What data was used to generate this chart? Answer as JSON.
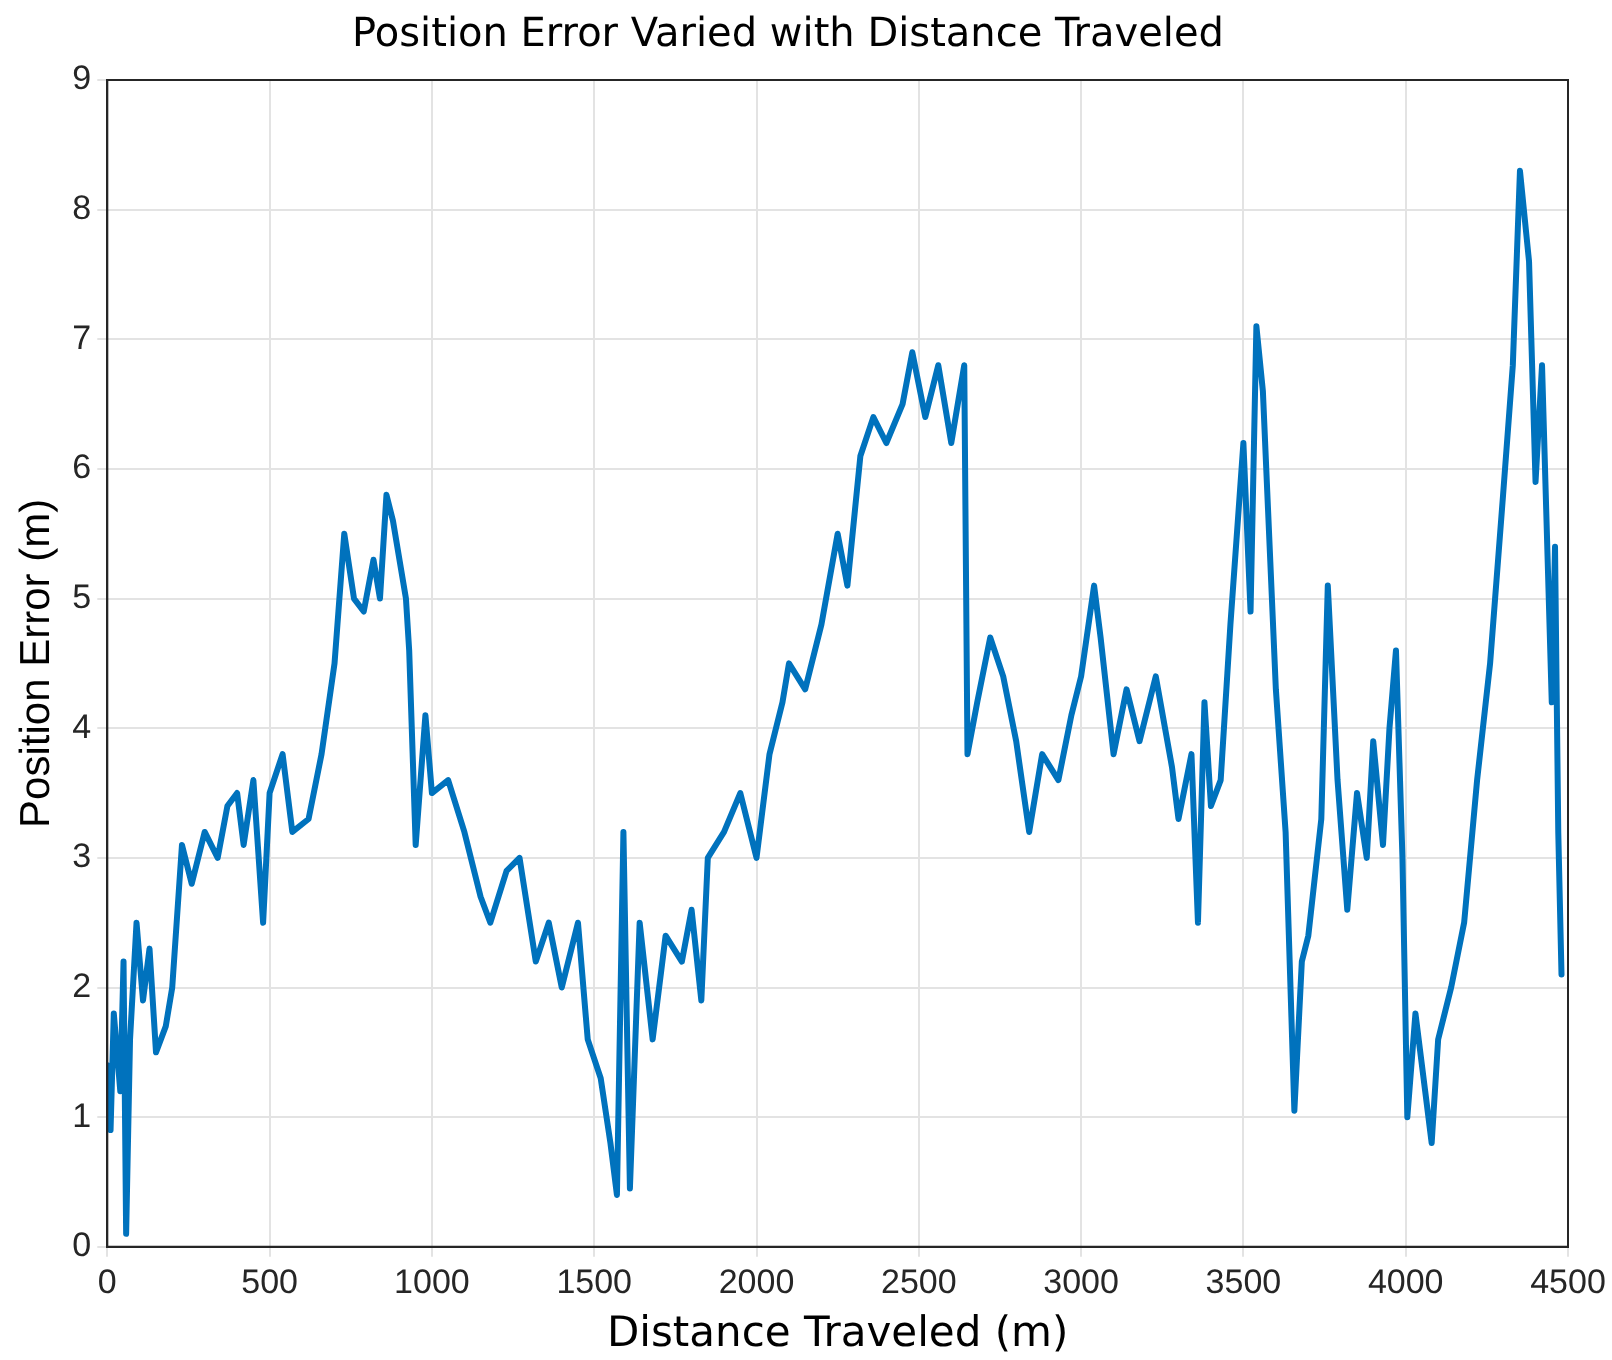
{
  "chart_data": {
    "type": "line",
    "title": "Position Error Varied with Distance Traveled",
    "xlabel": "Distance Traveled (m)",
    "ylabel": "Position Error (m)",
    "xlim": [
      0,
      4500
    ],
    "xticks": [
      0,
      500,
      1000,
      1500,
      2000,
      2500,
      3000,
      3500,
      4000,
      4500
    ],
    "ylim": [
      0,
      9
    ],
    "yticks": [
      0,
      1,
      2,
      3,
      4,
      5,
      6,
      7,
      8,
      9
    ],
    "grid": true,
    "legend": false,
    "marker": "none",
    "line_style": "solid",
    "series": [
      {
        "color": "#0072bd",
        "x": [
          0,
          10,
          20,
          40,
          50,
          58,
          70,
          90,
          110,
          130,
          150,
          180,
          200,
          230,
          260,
          300,
          340,
          370,
          400,
          420,
          450,
          480,
          500,
          540,
          570,
          620,
          660,
          700,
          730,
          760,
          790,
          820,
          840,
          860,
          880,
          920,
          930,
          950,
          980,
          1000,
          1050,
          1100,
          1150,
          1180,
          1230,
          1270,
          1320,
          1360,
          1400,
          1450,
          1480,
          1520,
          1550,
          1570,
          1590,
          1610,
          1640,
          1680,
          1720,
          1770,
          1800,
          1830,
          1850,
          1900,
          1950,
          2000,
          2040,
          2080,
          2100,
          2150,
          2200,
          2250,
          2280,
          2320,
          2360,
          2400,
          2450,
          2480,
          2520,
          2560,
          2600,
          2640,
          2650,
          2680,
          2720,
          2760,
          2800,
          2840,
          2880,
          2930,
          2970,
          3000,
          3040,
          3060,
          3100,
          3140,
          3180,
          3230,
          3280,
          3300,
          3340,
          3360,
          3380,
          3400,
          3430,
          3460,
          3500,
          3522,
          3540,
          3560,
          3600,
          3630,
          3657,
          3680,
          3700,
          3740,
          3760,
          3790,
          3820,
          3850,
          3880,
          3900,
          3930,
          3950,
          3970,
          3990,
          4005,
          4030,
          4060,
          4080,
          4100,
          4140,
          4180,
          4220,
          4260,
          4300,
          4330,
          4352,
          4380,
          4400,
          4420,
          4450,
          4460,
          4470,
          4480
        ],
        "values": [
          1.4,
          0.9,
          1.8,
          1.2,
          2.2,
          0.1,
          1.6,
          2.5,
          1.9,
          2.3,
          1.5,
          1.7,
          2.0,
          3.1,
          2.8,
          3.2,
          3.0,
          3.4,
          3.5,
          3.1,
          3.6,
          2.5,
          3.5,
          3.8,
          3.2,
          3.3,
          3.8,
          4.5,
          5.5,
          5.0,
          4.9,
          5.3,
          5.0,
          5.8,
          5.6,
          5.0,
          4.6,
          3.1,
          4.1,
          3.5,
          3.6,
          3.2,
          2.7,
          2.5,
          2.9,
          3.0,
          2.2,
          2.5,
          2.0,
          2.5,
          1.6,
          1.3,
          0.8,
          0.4,
          3.2,
          0.45,
          2.5,
          1.6,
          2.4,
          2.2,
          2.6,
          1.9,
          3.0,
          3.2,
          3.5,
          3.0,
          3.8,
          4.2,
          4.5,
          4.3,
          4.8,
          5.5,
          5.1,
          6.1,
          6.4,
          6.2,
          6.5,
          6.9,
          6.4,
          6.8,
          6.2,
          6.8,
          3.8,
          4.2,
          4.7,
          4.4,
          3.9,
          3.2,
          3.8,
          3.6,
          4.1,
          4.4,
          5.1,
          4.7,
          3.8,
          4.3,
          3.9,
          4.4,
          3.7,
          3.3,
          3.8,
          2.5,
          4.2,
          3.4,
          3.6,
          4.8,
          6.2,
          4.9,
          7.1,
          6.6,
          4.3,
          3.2,
          1.05,
          2.2,
          2.4,
          3.3,
          5.1,
          3.6,
          2.6,
          3.5,
          3.0,
          3.9,
          3.1,
          4.0,
          4.6,
          3.0,
          1.0,
          1.8,
          1.2,
          0.8,
          1.6,
          2.0,
          2.5,
          3.6,
          4.5,
          5.8,
          6.8,
          8.3,
          7.6,
          5.9,
          6.8,
          4.2,
          5.4,
          3.2,
          2.1
        ]
      }
    ]
  }
}
